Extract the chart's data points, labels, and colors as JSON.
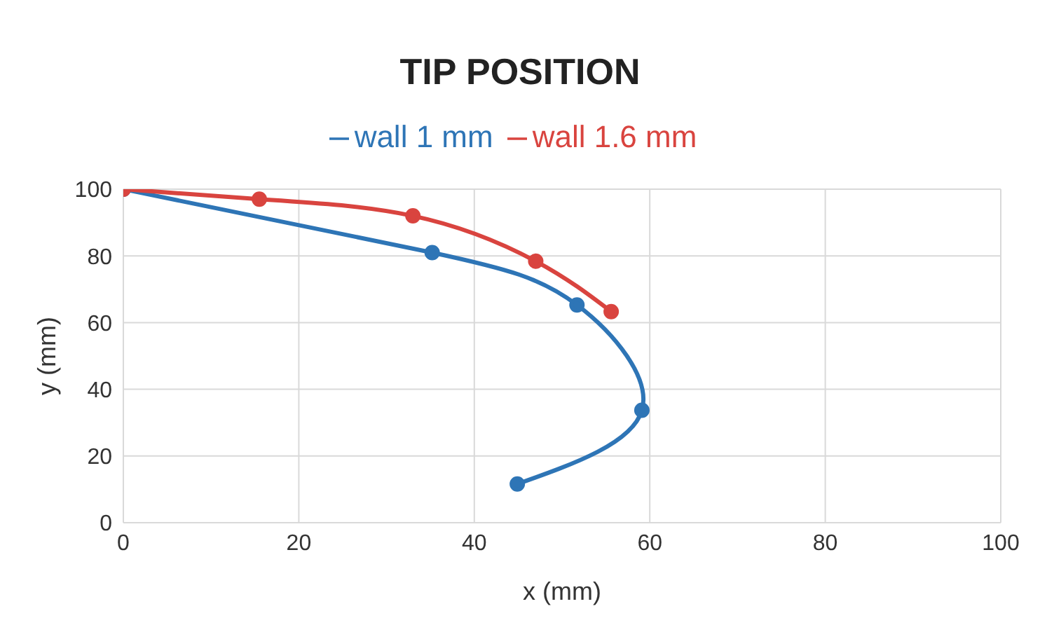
{
  "chart_data": {
    "type": "line",
    "title": "TIP POSITION",
    "xlabel": "x (mm)",
    "ylabel": "y (mm)",
    "series": [
      {
        "name": "wall 1 mm",
        "color": "#2e75b6",
        "x": [
          0,
          35.2,
          51.7,
          59.1,
          44.9
        ],
        "values": [
          100,
          81,
          65.3,
          33.7,
          11.6
        ]
      },
      {
        "name": "wall 1.6 mm",
        "color": "#d9443f",
        "x": [
          0,
          15.5,
          33,
          47,
          55.6
        ],
        "values": [
          100,
          97,
          92,
          78.4,
          63.3
        ]
      }
    ],
    "xlim": [
      0,
      100
    ],
    "xticks": [
      0,
      20,
      40,
      60,
      80,
      100
    ],
    "ylim": [
      0,
      100
    ],
    "yticks": [
      0,
      20,
      40,
      60,
      80,
      100
    ],
    "grid": true,
    "legend": "top",
    "marker": "circle",
    "line_style": "solid"
  }
}
